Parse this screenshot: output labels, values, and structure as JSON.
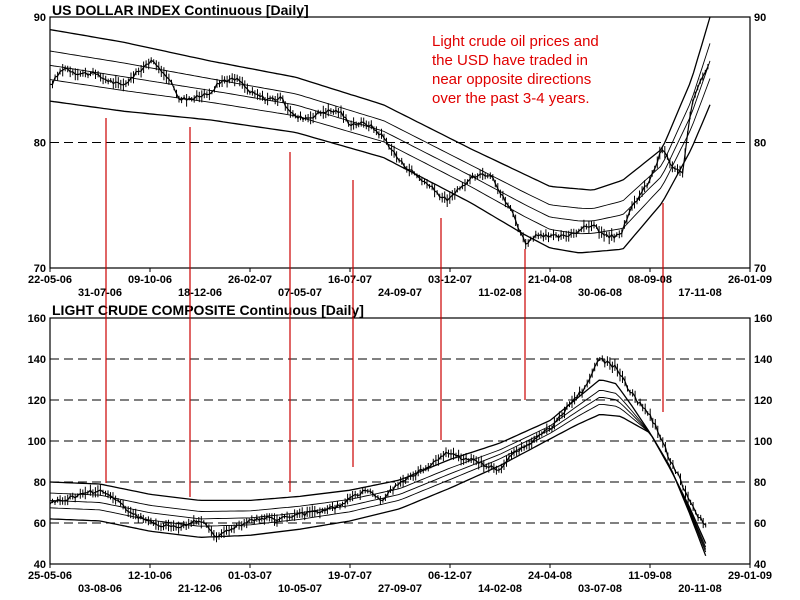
{
  "chart_data": [
    {
      "type": "line",
      "title": "US DOLLAR INDEX Continuous  [Daily]",
      "ylim": [
        70,
        90
      ],
      "yticks": [
        70,
        80,
        90
      ],
      "grid": "horizontal dashed at 80",
      "xlim": [
        "2006-05-22",
        "2009-01-26"
      ],
      "xticks_upper": [
        "22-05-06",
        "09-10-06",
        "26-02-07",
        "16-07-07",
        "03-12-07",
        "21-04-08",
        "08-09-08",
        "26-01-09"
      ],
      "xticks_lower": [
        "31-07-06",
        "18-12-06",
        "07-05-07",
        "24-09-07",
        "11-02-08",
        "30-06-08",
        "17-11-08"
      ],
      "annotation": [
        "Light crude oil prices and",
        "the USD have traded in",
        "near opposite directions",
        "over the past 3-4 years."
      ],
      "annotation_color": "#e00000",
      "line_color": "#000000",
      "series": [
        {
          "x": [
            "2006-05-22",
            "2006-06-10",
            "2006-07-01",
            "2006-07-20",
            "2006-08-10",
            "2006-08-31",
            "2006-09-20",
            "2006-10-09",
            "2006-10-31",
            "2006-11-20",
            "2006-12-10",
            "2006-12-31",
            "2007-01-20",
            "2007-02-10",
            "2007-02-26",
            "2007-03-20",
            "2007-04-10",
            "2007-05-01",
            "2007-05-20",
            "2007-06-10",
            "2007-07-01",
            "2007-07-16",
            "2007-08-10",
            "2007-08-31",
            "2007-09-24",
            "2007-10-15",
            "2007-11-05",
            "2007-11-25",
            "2007-12-03",
            "2007-12-20",
            "2008-01-10",
            "2008-01-31",
            "2008-02-11",
            "2008-02-28",
            "2008-03-17",
            "2008-04-01",
            "2008-04-21",
            "2008-05-10",
            "2008-05-31",
            "2008-06-20",
            "2008-07-07",
            "2008-07-20",
            "2008-08-01",
            "2008-08-15",
            "2008-09-08",
            "2008-09-25",
            "2008-10-10",
            "2008-10-24",
            "2008-11-05",
            "2008-11-17",
            "2008-11-28"
          ],
          "values": [
            84.5,
            86,
            85.5,
            85.5,
            85,
            84.5,
            85.5,
            86.5,
            85.5,
            83.5,
            83.5,
            84,
            85,
            85,
            84,
            83.5,
            83.5,
            82,
            82,
            82.5,
            82.5,
            81.5,
            81.5,
            80.5,
            78.5,
            77.5,
            76.5,
            75.5,
            75.5,
            76.5,
            77.5,
            77.5,
            76,
            74.5,
            72,
            72.5,
            72.5,
            72.5,
            73,
            73.5,
            72.5,
            72.5,
            73,
            75,
            77,
            79.5,
            78,
            77.5,
            83,
            85,
            86
          ]
        }
      ],
      "bands": [
        {
          "name": "outer-upper",
          "x": [
            "2006-05-22",
            "2006-09-01",
            "2007-01-01",
            "2007-05-01",
            "2007-09-01",
            "2008-01-01",
            "2008-04-21",
            "2008-06-20",
            "2008-08-01",
            "2008-09-25",
            "2008-11-05",
            "2008-12-01"
          ],
          "values": [
            89,
            88,
            86.5,
            85.2,
            83,
            79.5,
            76.5,
            76.2,
            77,
            79.5,
            85,
            90
          ]
        },
        {
          "name": "outer-lower",
          "x": [
            "2006-05-22",
            "2006-09-01",
            "2007-01-01",
            "2007-05-01",
            "2007-09-01",
            "2008-01-01",
            "2008-03-15",
            "2008-04-21",
            "2008-06-01",
            "2008-08-01",
            "2008-09-25",
            "2008-11-05",
            "2008-12-01"
          ],
          "values": [
            83.3,
            82.5,
            81.8,
            80.8,
            78.8,
            75.2,
            72.7,
            71.6,
            71.2,
            71.5,
            75.2,
            79.5,
            83
          ]
        }
      ]
    },
    {
      "type": "line",
      "title": "LIGHT CRUDE COMPOSITE Continuous  [Daily]",
      "ylim": [
        40,
        160
      ],
      "yticks": [
        40,
        60,
        80,
        100,
        120,
        140,
        160
      ],
      "grid": "horizontal dashed at 60, 80, 100, 120, 140",
      "xlim": [
        "2006-05-25",
        "2009-01-29"
      ],
      "xticks_upper": [
        "25-05-06",
        "12-10-06",
        "01-03-07",
        "19-07-07",
        "06-12-07",
        "24-04-08",
        "11-09-08",
        "29-01-09"
      ],
      "xticks_lower": [
        "03-08-06",
        "21-12-06",
        "10-05-07",
        "27-09-07",
        "14-02-08",
        "03-07-08",
        "20-11-08"
      ],
      "line_color": "#000000",
      "series": [
        {
          "x": [
            "2006-05-25",
            "2006-06-20",
            "2006-07-15",
            "2006-08-03",
            "2006-08-25",
            "2006-09-15",
            "2006-10-12",
            "2006-11-01",
            "2006-11-25",
            "2006-12-21",
            "2007-01-15",
            "2007-02-01",
            "2007-02-20",
            "2007-03-15",
            "2007-04-10",
            "2007-05-10",
            "2007-06-10",
            "2007-07-01",
            "2007-07-19",
            "2007-08-10",
            "2007-09-01",
            "2007-09-27",
            "2007-10-20",
            "2007-11-10",
            "2007-12-06",
            "2007-12-25",
            "2008-01-15",
            "2008-02-14",
            "2008-03-05",
            "2008-03-25",
            "2008-04-15",
            "2008-05-01",
            "2008-05-20",
            "2008-06-10",
            "2008-07-03",
            "2008-07-25",
            "2008-08-15",
            "2008-09-01",
            "2008-09-11",
            "2008-09-25",
            "2008-10-10",
            "2008-10-25",
            "2008-11-05",
            "2008-11-20",
            "2008-11-28"
          ],
          "values": [
            70,
            72,
            75,
            76,
            72,
            65,
            60,
            59,
            58,
            62,
            53,
            57,
            60,
            62,
            62,
            64,
            66,
            68,
            72,
            76,
            71,
            80,
            84,
            89,
            95,
            91,
            90,
            85,
            95,
            98,
            104,
            108,
            118,
            125,
            140,
            136,
            124,
            116,
            112,
            103,
            90,
            80,
            70,
            62,
            60
          ]
        }
      ],
      "bands": [
        {
          "name": "outer-upper",
          "x": [
            "2006-05-25",
            "2006-08-03",
            "2006-10-12",
            "2006-12-21",
            "2007-03-01",
            "2007-05-10",
            "2007-07-19",
            "2007-09-27",
            "2007-12-06",
            "2008-02-14",
            "2008-04-24",
            "2008-07-03",
            "2008-07-25",
            "2008-08-15",
            "2008-09-11",
            "2008-10-10",
            "2008-11-05",
            "2008-11-28"
          ],
          "values": [
            80,
            79,
            74,
            71,
            71,
            73,
            76,
            81,
            91,
            99,
            110,
            130,
            128,
            118,
            104,
            86,
            68,
            50
          ]
        },
        {
          "name": "outer-lower",
          "x": [
            "2006-05-25",
            "2006-08-03",
            "2006-10-12",
            "2006-12-21",
            "2007-03-01",
            "2007-05-10",
            "2007-07-19",
            "2007-09-27",
            "2007-12-06",
            "2008-02-14",
            "2008-04-24",
            "2008-06-01",
            "2008-07-03",
            "2008-08-01",
            "2008-09-11",
            "2008-10-10",
            "2008-11-05",
            "2008-11-28"
          ],
          "values": [
            62,
            61,
            56,
            53,
            54,
            57,
            61,
            67,
            77,
            88,
            101,
            108,
            113,
            112,
            104,
            87,
            65,
            44
          ]
        }
      ]
    }
  ],
  "markers": {
    "color": "#cc0000",
    "lines": [
      {
        "x": 106,
        "top": 118,
        "bottom": 483
      },
      {
        "x": 190,
        "top": 127,
        "bottom": 497
      },
      {
        "x": 290,
        "top": 152,
        "bottom": 492
      },
      {
        "x": 353,
        "top": 180,
        "bottom": 467
      },
      {
        "x": 441,
        "top": 218,
        "bottom": 440
      },
      {
        "x": 525,
        "top": 249,
        "bottom": 400
      },
      {
        "x": 663,
        "top": 203,
        "bottom": 412
      }
    ]
  }
}
